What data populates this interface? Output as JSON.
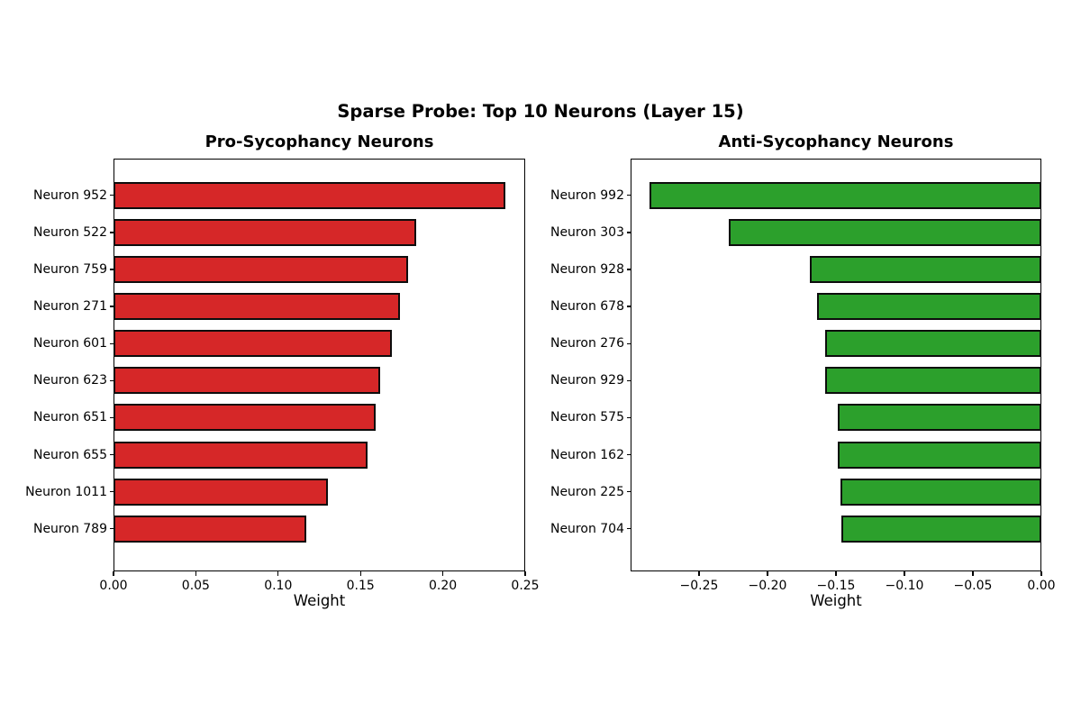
{
  "chart_data": {
    "type": "bar",
    "orientation": "horizontal",
    "suptitle": "Sparse Probe: Top 10 Neurons (Layer 15)",
    "grid": false,
    "legend": false,
    "charts": [
      {
        "title": "Pro-Sycophancy Neurons",
        "xlabel": "Weight",
        "bar_color": "#d62728",
        "bar_edge_color": "#0d0d0d",
        "xlim": [
          0,
          0.25
        ],
        "xticks": [
          0,
          0.05,
          0.1,
          0.15,
          0.2,
          0.25
        ],
        "xtick_labels": [
          "0.00",
          "0.05",
          "0.10",
          "0.15",
          "0.20",
          "0.25"
        ],
        "categories": [
          "Neuron 952",
          "Neuron 522",
          "Neuron 759",
          "Neuron 271",
          "Neuron 601",
          "Neuron 623",
          "Neuron 651",
          "Neuron 655",
          "Neuron 1011",
          "Neuron 789"
        ],
        "values": [
          0.238,
          0.184,
          0.179,
          0.174,
          0.169,
          0.162,
          0.159,
          0.154,
          0.13,
          0.117
        ]
      },
      {
        "title": "Anti-Sycophancy Neurons",
        "xlabel": "Weight",
        "bar_color": "#2ca02c",
        "bar_edge_color": "#0d0d0d",
        "xlim": [
          -0.3,
          0
        ],
        "xticks": [
          -0.25,
          -0.2,
          -0.15,
          -0.1,
          -0.05,
          0
        ],
        "xtick_labels": [
          "−0.25",
          "−0.20",
          "−0.15",
          "−0.10",
          "−0.05",
          "0.00"
        ],
        "categories": [
          "Neuron 992",
          "Neuron 303",
          "Neuron 928",
          "Neuron 678",
          "Neuron 276",
          "Neuron 929",
          "Neuron 575",
          "Neuron 162",
          "Neuron 225",
          "Neuron 704"
        ],
        "values": [
          -0.286,
          -0.228,
          -0.169,
          -0.164,
          -0.158,
          -0.158,
          -0.149,
          -0.149,
          -0.147,
          -0.146
        ]
      }
    ]
  }
}
